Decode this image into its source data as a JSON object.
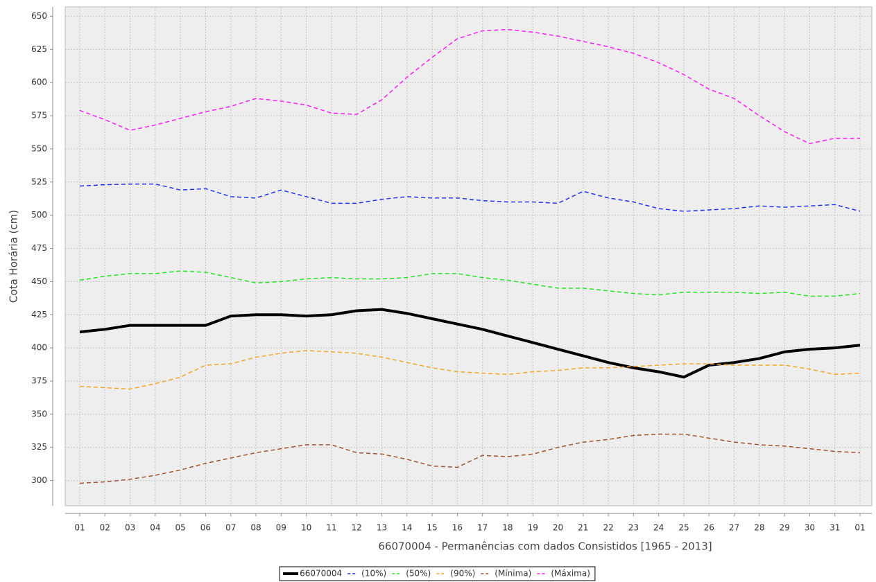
{
  "chart_data": {
    "type": "line",
    "x_label": "66070004 - Permanências com dados Consistidos [1965 - 2013]",
    "y_label": "Cota Horária (cm)",
    "categories": [
      "01",
      "02",
      "03",
      "04",
      "05",
      "06",
      "07",
      "08",
      "09",
      "10",
      "11",
      "12",
      "13",
      "14",
      "15",
      "16",
      "17",
      "18",
      "19",
      "20",
      "21",
      "22",
      "23",
      "24",
      "25",
      "26",
      "27",
      "28",
      "29",
      "30",
      "31",
      "01"
    ],
    "ylim": [
      281,
      657
    ],
    "yticks": [
      300,
      325,
      350,
      375,
      400,
      425,
      450,
      475,
      500,
      525,
      550,
      575,
      600,
      625,
      650
    ],
    "grid": true,
    "legend": "bottom",
    "series": [
      {
        "name": "66070004",
        "color": "#000000",
        "line_style": "solid",
        "values": [
          412,
          414,
          417,
          417,
          417,
          417,
          424,
          425,
          425,
          424,
          425,
          428,
          429,
          426,
          422,
          418,
          414,
          409,
          404,
          399,
          394,
          389,
          385,
          382,
          378,
          387,
          389,
          392,
          397,
          399,
          400,
          402
        ]
      },
      {
        "name": "(10%)",
        "color": "#1f2fff",
        "line_style": "dashed",
        "values": [
          522,
          523,
          523.5,
          523.5,
          519,
          520,
          514,
          513,
          519,
          514,
          509,
          509,
          512,
          514,
          513,
          513,
          511,
          510,
          510,
          509,
          518,
          513,
          510,
          505,
          503,
          504,
          505,
          507,
          506,
          507,
          508,
          503
        ]
      },
      {
        "name": "(50%)",
        "color": "#1ee61e",
        "line_style": "dashed",
        "values": [
          451,
          454,
          456,
          456,
          458,
          457,
          453,
          449,
          450,
          452,
          453,
          452,
          452,
          453,
          456,
          456,
          453,
          451,
          448,
          445,
          445,
          443,
          441,
          440,
          442,
          442,
          442,
          441,
          442,
          439,
          439,
          441
        ]
      },
      {
        "name": "(90%)",
        "color": "#f5a623",
        "line_style": "dashed",
        "values": [
          371,
          370,
          369,
          373,
          378,
          387,
          388,
          393,
          396,
          398,
          397,
          396,
          393,
          389,
          385,
          382,
          381,
          380,
          382,
          383,
          385,
          385,
          386,
          387,
          388,
          388,
          387,
          387,
          387,
          384,
          380,
          381
        ]
      },
      {
        "name": "(Mínima)",
        "color": "#a0522d",
        "line_style": "dashed",
        "values": [
          298,
          299,
          301,
          304,
          308,
          313,
          317,
          321,
          324,
          327,
          327,
          321,
          320,
          316,
          311,
          310,
          319,
          318,
          320,
          325,
          329,
          331,
          334,
          335,
          335,
          332,
          329,
          327,
          326,
          324,
          322,
          321
        ]
      },
      {
        "name": "(Máxima)",
        "color": "#ff1aff",
        "line_style": "dashed",
        "values": [
          579,
          572,
          564,
          568,
          573,
          578,
          582,
          588,
          586,
          583,
          577,
          576,
          587,
          604,
          619,
          633,
          639,
          640,
          638,
          635,
          631,
          627,
          622,
          615,
          606,
          595,
          588,
          575,
          563,
          554,
          558,
          558
        ]
      }
    ]
  }
}
